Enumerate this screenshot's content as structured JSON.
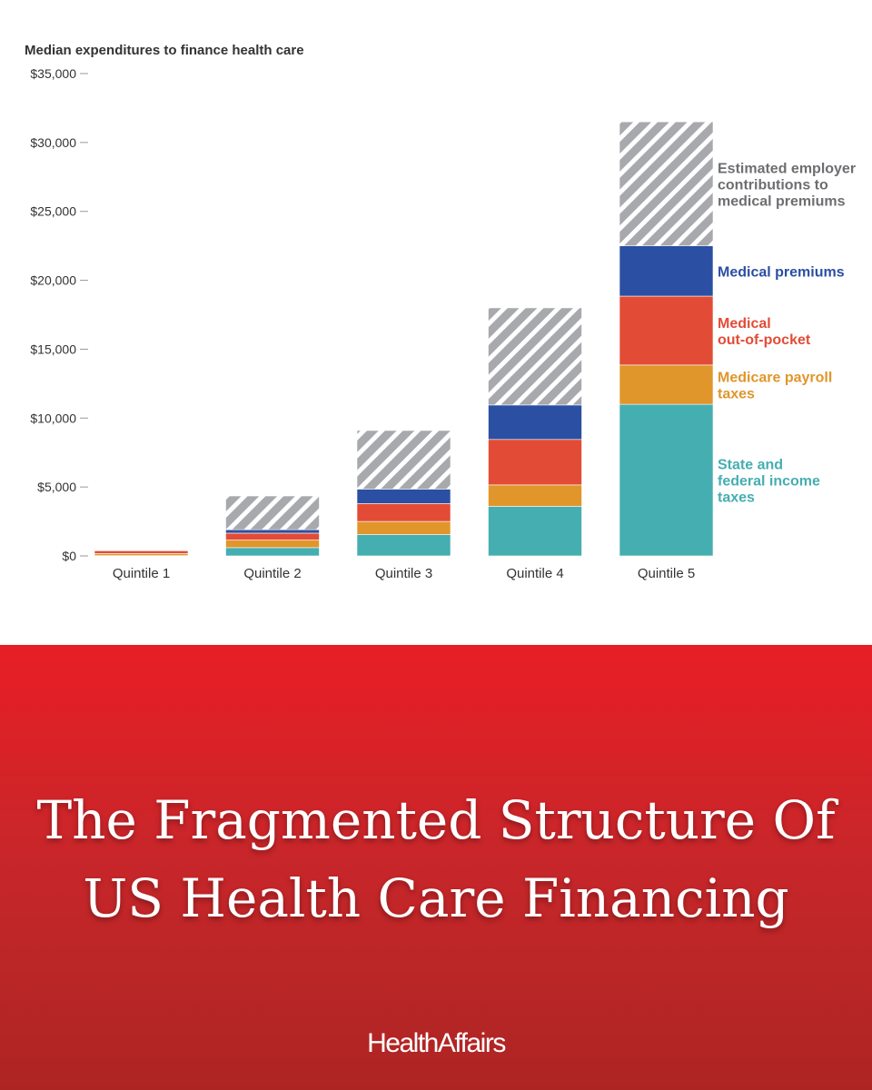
{
  "chart_data": {
    "type": "bar",
    "stacked": true,
    "ylabel": "Median expenditures to finance health care",
    "ylim": [
      0,
      35000
    ],
    "yticks": [
      0,
      5000,
      10000,
      15000,
      20000,
      25000,
      30000,
      35000
    ],
    "ytick_labels": [
      "$0",
      "$5,000",
      "$10,000",
      "$15,000",
      "$20,000",
      "$25,000",
      "$30,000",
      "$35,000"
    ],
    "categories": [
      "Quintile 1",
      "Quintile 2",
      "Quintile 3",
      "Quintile 4",
      "Quintile 5"
    ],
    "series": [
      {
        "name": "State and federal income taxes",
        "color": "#45aeb1",
        "values": [
          20,
          600,
          1550,
          3600,
          11000
        ]
      },
      {
        "name": "Medicare payroll taxes",
        "color": "#e0962b",
        "values": [
          150,
          550,
          950,
          1550,
          2850
        ]
      },
      {
        "name": "Medical out-of-pocket",
        "color": "#e24c36",
        "values": [
          200,
          500,
          1300,
          3300,
          5000
        ]
      },
      {
        "name": "Medical premiums",
        "color": "#2b4fa2",
        "values": [
          0,
          250,
          1050,
          2500,
          3650
        ]
      },
      {
        "name": "Estimated employer contributions to medical premiums",
        "color": "#a7a9ac",
        "pattern": "hatched",
        "values": [
          0,
          2450,
          4250,
          7050,
          9000
        ]
      }
    ],
    "legend_placement": "right",
    "grid": false
  },
  "banner": {
    "title_line1": "The Fragmented Structure Of",
    "title_line2": "US Health Care Financing",
    "brand": "HealthAffairs"
  }
}
